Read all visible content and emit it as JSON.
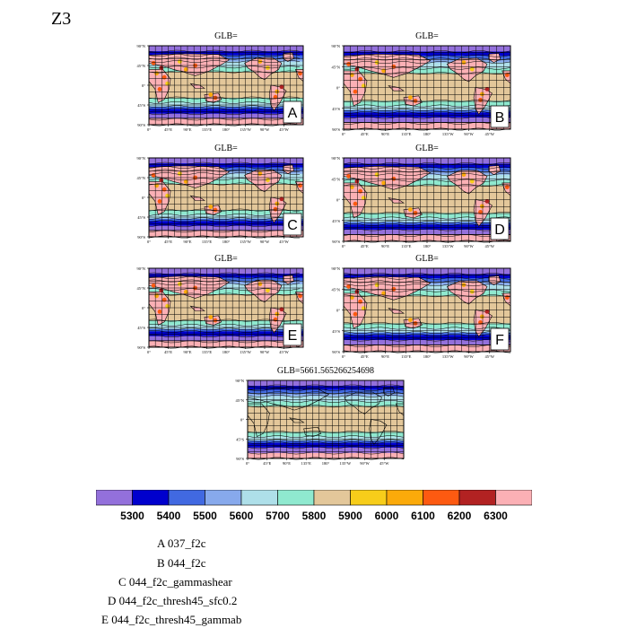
{
  "figure": {
    "title": "Z3"
  },
  "chart_data": {
    "type": "heatmap",
    "description_variable": "Z3",
    "panels": [
      {
        "id": "A",
        "title": "GLB=",
        "label": "A"
      },
      {
        "id": "B",
        "title": "GLB=",
        "label": "B"
      },
      {
        "id": "C",
        "title": "GLB=",
        "label": "C"
      },
      {
        "id": "D",
        "title": "GLB=",
        "label": "D"
      },
      {
        "id": "E",
        "title": "GLB=",
        "label": "E"
      },
      {
        "id": "F",
        "title": "GLB=",
        "label": "F"
      },
      {
        "id": "G",
        "title": "GLB=5661.565266254698",
        "label": ""
      }
    ],
    "lat_ticks": [
      "90°N",
      "45°N",
      "0°",
      "45°S",
      "90°S"
    ],
    "lon_ticks": [
      "0°",
      "45°E",
      "90°E",
      "135°E",
      "180°",
      "135°W",
      "90°W",
      "45°W"
    ],
    "contour_levels": [
      5300,
      5400,
      5500,
      5600,
      5700,
      5800,
      5900,
      6000,
      6100,
      6200,
      6300
    ],
    "colors": [
      "#9370db",
      "#0000cd",
      "#4169e1",
      "#87a9ec",
      "#aedfe9",
      "#8fe9cf",
      "#e3c79a",
      "#f7cd1a",
      "#fbaa0a",
      "#fd5a11",
      "#b22222",
      "#fbb0b5"
    ]
  },
  "legend": {
    "lines": [
      "A  037_f2c",
      "B  044_f2c",
      "C  044_f2c_gammashear",
      "D  044_f2c_thresh45_sfc0.2",
      "E  044_f2c_thresh45_gammab"
    ]
  }
}
